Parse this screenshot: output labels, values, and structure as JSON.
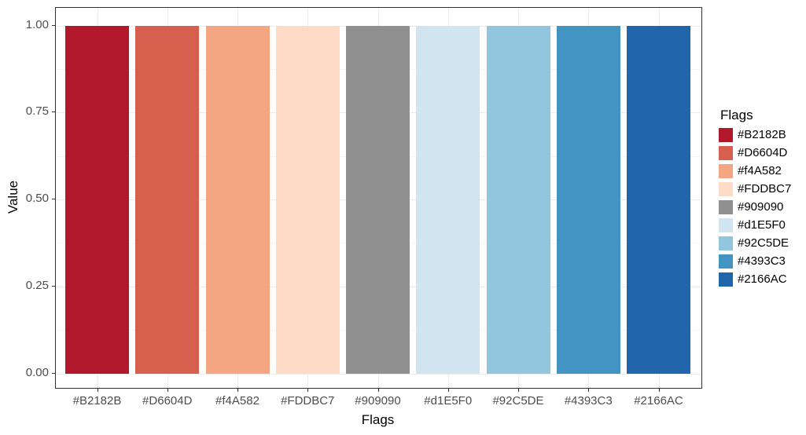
{
  "chart_data": {
    "type": "bar",
    "title": "",
    "xlabel": "Flags",
    "ylabel": "Value",
    "categories": [
      "#B2182B",
      "#D6604D",
      "#f4A582",
      "#FDDBC7",
      "#909090",
      "#d1E5F0",
      "#92C5DE",
      "#4393C3",
      "#2166AC"
    ],
    "values": [
      1.0,
      1.0,
      1.0,
      1.0,
      1.0,
      1.0,
      1.0,
      1.0,
      1.0
    ],
    "bar_colors": [
      "#B2182B",
      "#D6604D",
      "#F4A582",
      "#FDDBC7",
      "#909090",
      "#D1E5F0",
      "#92C5DE",
      "#4393C3",
      "#2166AC"
    ],
    "ylim": [
      0,
      1
    ],
    "yticks": [
      {
        "value": 0.0,
        "label": "0.00"
      },
      {
        "value": 0.25,
        "label": "0.25"
      },
      {
        "value": 0.5,
        "label": "0.50"
      },
      {
        "value": 0.75,
        "label": "0.75"
      },
      {
        "value": 1.0,
        "label": "1.00"
      }
    ],
    "yminor": [
      0.125,
      0.375,
      0.625,
      0.875
    ],
    "grid": "on",
    "legend": {
      "title": "Flags",
      "position": "right",
      "entries": [
        {
          "label": "#B2182B",
          "color": "#B2182B"
        },
        {
          "label": "#D6604D",
          "color": "#D6604D"
        },
        {
          "label": "#f4A582",
          "color": "#F4A582"
        },
        {
          "label": "#FDDBC7",
          "color": "#FDDBC7"
        },
        {
          "label": "#909090",
          "color": "#909090"
        },
        {
          "label": "#d1E5F0",
          "color": "#D1E5F0"
        },
        {
          "label": "#92C5DE",
          "color": "#92C5DE"
        },
        {
          "label": "#4393C3",
          "color": "#4393C3"
        },
        {
          "label": "#2166AC",
          "color": "#2166AC"
        }
      ]
    }
  },
  "style": {
    "background": "#ffffff",
    "panel_border": "#333333",
    "grid_major": "#ebebeb",
    "grid_minor": "#f5f5f5",
    "tick_color": "#333333",
    "axis_text_color": "#4d4d4d",
    "title_text_color": "#000000"
  }
}
